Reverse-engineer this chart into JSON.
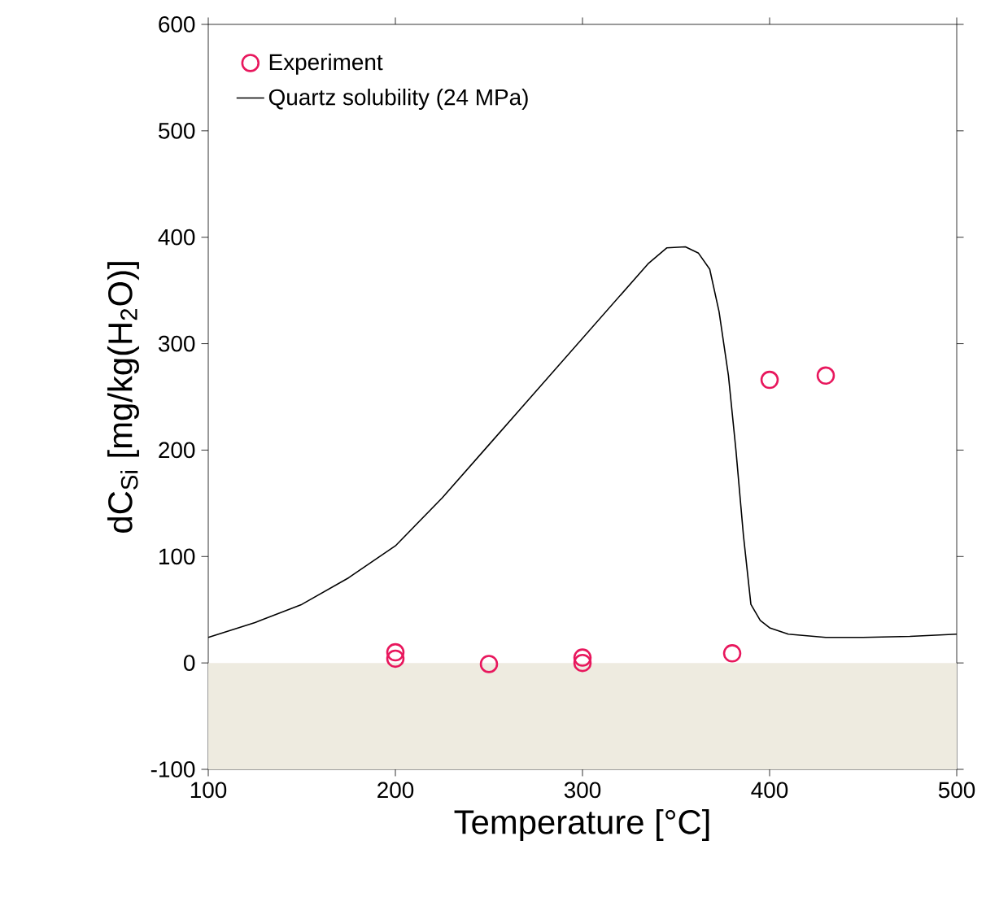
{
  "chart_data": {
    "type": "scatter",
    "xlabel": "Temperature [°C]",
    "ylabel": "dC$_{Si}$ [mg/kg(H$_{2}$O)]",
    "xlim": [
      100,
      500
    ],
    "xticks": [
      100,
      200,
      300,
      400,
      500
    ],
    "ylim": [
      -100,
      600
    ],
    "yticks": [
      -100,
      0,
      100,
      200,
      300,
      400,
      500,
      600
    ],
    "legend": "top left",
    "grid": false,
    "bands": [
      {
        "axis": "y",
        "from": -100,
        "to": 0,
        "color": "#eeebe0"
      }
    ],
    "series": [
      {
        "name": "Experiment",
        "marker": "circle",
        "color": "#e8175d",
        "x": [
          200,
          200,
          250,
          300,
          300,
          380,
          400,
          430
        ],
        "values": [
          10,
          4,
          -1,
          5,
          0,
          9,
          266,
          270
        ]
      },
      {
        "name": "Quartz solubility (24 MPa)",
        "type": "line",
        "marker": "none",
        "line_style": "solid",
        "color": "#000000",
        "x": [
          100,
          125,
          150,
          175,
          200,
          225,
          250,
          275,
          300,
          320,
          335,
          345,
          355,
          362,
          368,
          373,
          378,
          382,
          386,
          390,
          395,
          400,
          410,
          430,
          450,
          475,
          500
        ],
        "values": [
          24,
          38,
          55,
          80,
          110,
          155,
          205,
          255,
          305,
          345,
          375,
          390,
          391,
          385,
          370,
          330,
          270,
          200,
          120,
          55,
          40,
          33,
          27,
          24,
          24,
          25,
          27
        ]
      }
    ]
  }
}
